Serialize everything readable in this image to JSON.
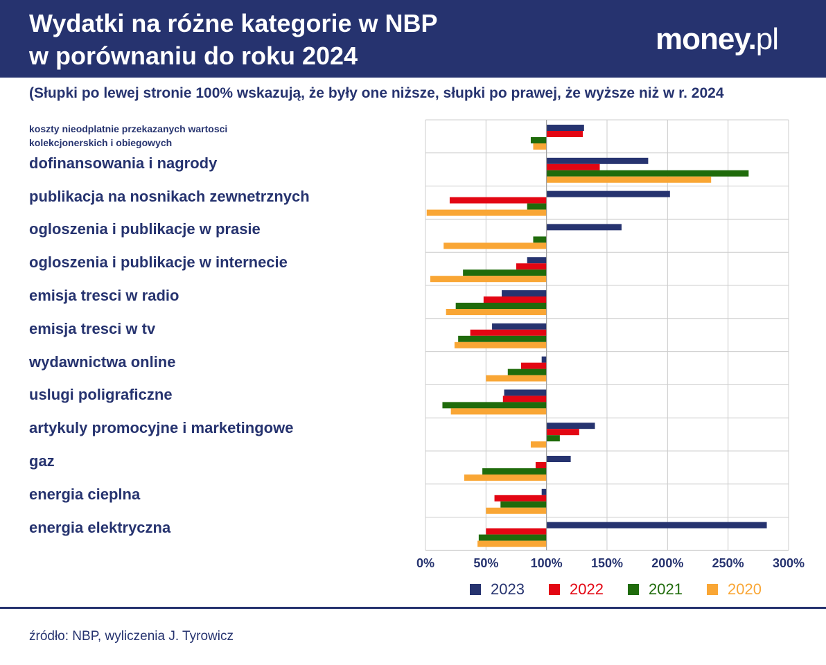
{
  "header": {
    "title": "Wydatki na różne kategorie w NBP\nw porównaniu do roku 2024",
    "brand": {
      "main": "money",
      "dot": ".",
      "suffix": "pl"
    }
  },
  "subtitle": "(Słupki po lewej stronie 100% wskazują, że były one niższe, słupki po prawej, że wyższe niż w r. 2024",
  "source": "źródło: NBP, wyliczenia J. Tyrowicz",
  "colors": {
    "header_bg": "#26336f",
    "grid": "#cccccc",
    "axis_text": "#26336f"
  },
  "chart_data": {
    "type": "bar",
    "orientation": "horizontal",
    "baseline": 100,
    "xlim": [
      0,
      300
    ],
    "x_ticks": [
      "0%",
      "50%",
      "100%",
      "150%",
      "200%",
      "250%",
      "300%"
    ],
    "grid": true,
    "legend_position": "bottom",
    "categories": [
      "koszty nieodplatnie przekazanych wartosci\nkolekcjonerskich i obiegowych",
      "dofinansowania i nagrody",
      "publikacja na nosnikach zewnetrznych",
      "ogloszenia i publikacje w prasie",
      "ogloszenia i publikacje w internecie",
      "emisja tresci w radio",
      "emisja tresci w tv",
      "wydawnictwa online",
      "uslugi poligraficzne",
      "artykuly promocyjne i marketingowe",
      "gaz",
      "energia cieplna",
      "energia elektryczna"
    ],
    "series": [
      {
        "name": "2023",
        "color": "#26336f",
        "values": [
          131,
          184,
          202,
          162,
          84,
          63,
          55,
          96,
          65,
          140,
          120,
          96,
          282
        ]
      },
      {
        "name": "2022",
        "color": "#e30613",
        "values": [
          130,
          144,
          20,
          100,
          75,
          48,
          37,
          79,
          64,
          127,
          91,
          57,
          50
        ]
      },
      {
        "name": "2021",
        "color": "#1f6b0b",
        "values": [
          87,
          267,
          84,
          89,
          31,
          25,
          27,
          68,
          14,
          111,
          47,
          62,
          44
        ]
      },
      {
        "name": "2020",
        "color": "#f9a635",
        "values": [
          89,
          236,
          1,
          15,
          4,
          17,
          24,
          50,
          21,
          87,
          32,
          50,
          43
        ]
      }
    ]
  }
}
